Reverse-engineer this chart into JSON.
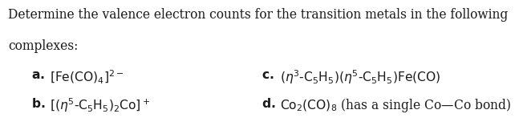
{
  "background_color": "#ffffff",
  "text_color": "#1a1a1a",
  "font_size": 11.2,
  "font_family": "DejaVu Serif",
  "line1": "Determine the valence electron counts for the transition metals in the following",
  "line2": "complexes:",
  "row_a_label": "a.",
  "row_a_text": " $[\\mathrm{Fe(CO)_4}]^{2-}$",
  "row_b_label": "b.",
  "row_b_text": " $[(\\eta^5\\text{-}\\mathrm{C_5H_5})_2\\mathrm{Co}]^+$",
  "row_c_label": "c.",
  "row_c_text": " $(\\eta^3\\text{-}\\mathrm{C_5H_5})(\\eta^5\\text{-}\\mathrm{C_5H_5})\\mathrm{Fe(CO)}$",
  "row_d_label": "d.",
  "row_d_text": " $\\mathrm{Co_2(CO)_8}$ (has a single Co—Co bond)"
}
